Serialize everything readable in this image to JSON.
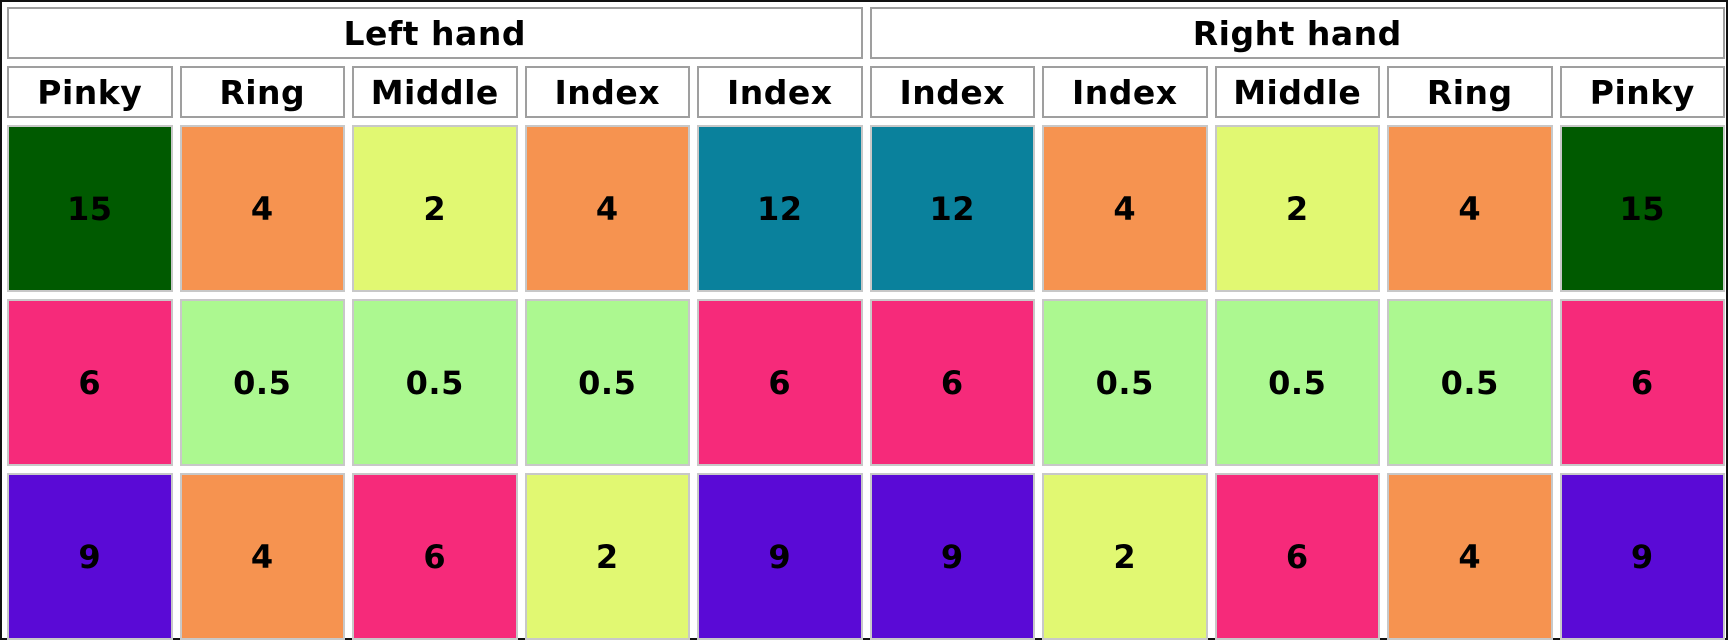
{
  "table": {
    "hands": [
      {
        "label": "Left hand"
      },
      {
        "label": "Right hand"
      }
    ],
    "fingers": [
      {
        "label": "Pinky"
      },
      {
        "label": "Ring"
      },
      {
        "label": "Middle"
      },
      {
        "label": "Index"
      },
      {
        "label": "Index"
      },
      {
        "label": "Index"
      },
      {
        "label": "Index"
      },
      {
        "label": "Middle"
      },
      {
        "label": "Ring"
      },
      {
        "label": "Pinky"
      }
    ],
    "rows": [
      {
        "cells": [
          {
            "value": "15",
            "color": "#005A00"
          },
          {
            "value": "4",
            "color": "#F69350"
          },
          {
            "value": "2",
            "color": "#E1F872"
          },
          {
            "value": "4",
            "color": "#F69350"
          },
          {
            "value": "12",
            "color": "#0A819C"
          },
          {
            "value": "12",
            "color": "#0A819C"
          },
          {
            "value": "4",
            "color": "#F69350"
          },
          {
            "value": "2",
            "color": "#E1F872"
          },
          {
            "value": "4",
            "color": "#F69350"
          },
          {
            "value": "15",
            "color": "#005A00"
          }
        ]
      },
      {
        "cells": [
          {
            "value": "6",
            "color": "#F62A7A"
          },
          {
            "value": "0.5",
            "color": "#ACF890"
          },
          {
            "value": "0.5",
            "color": "#ACF890"
          },
          {
            "value": "0.5",
            "color": "#ACF890"
          },
          {
            "value": "6",
            "color": "#F62A7A"
          },
          {
            "value": "6",
            "color": "#F62A7A"
          },
          {
            "value": "0.5",
            "color": "#ACF890"
          },
          {
            "value": "0.5",
            "color": "#ACF890"
          },
          {
            "value": "0.5",
            "color": "#ACF890"
          },
          {
            "value": "6",
            "color": "#F62A7A"
          }
        ]
      },
      {
        "cells": [
          {
            "value": "9",
            "color": "#5A0AD6"
          },
          {
            "value": "4",
            "color": "#F69350"
          },
          {
            "value": "6",
            "color": "#F62A7A"
          },
          {
            "value": "2",
            "color": "#E1F872"
          },
          {
            "value": "9",
            "color": "#5A0AD6"
          },
          {
            "value": "9",
            "color": "#5A0AD6"
          },
          {
            "value": "2",
            "color": "#E1F872"
          },
          {
            "value": "6",
            "color": "#F62A7A"
          },
          {
            "value": "4",
            "color": "#F69350"
          },
          {
            "value": "9",
            "color": "#5A0AD6"
          }
        ]
      }
    ]
  }
}
